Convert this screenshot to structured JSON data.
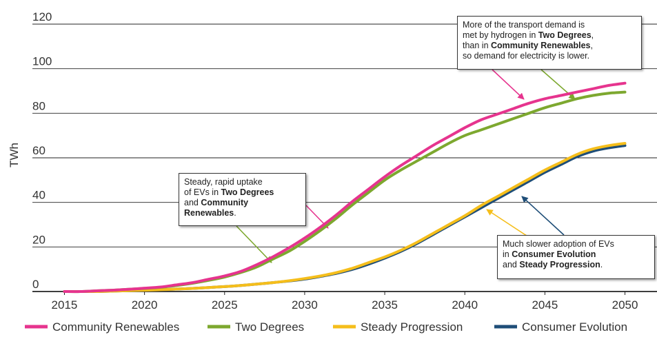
{
  "chart_data": {
    "type": "line",
    "title": "",
    "xlabel": "",
    "ylabel": "TWh",
    "xlim": [
      2013,
      2052
    ],
    "ylim": [
      0,
      120
    ],
    "x_ticks": [
      "2015",
      "2020",
      "2025",
      "2030",
      "2035",
      "2040",
      "2045",
      "2050"
    ],
    "y_ticks": [
      "0",
      "20",
      "40",
      "60",
      "80",
      "100",
      "120"
    ],
    "grid": "horizontal",
    "legend_position": "bottom",
    "x": [
      2015,
      2016,
      2017,
      2018,
      2019,
      2020,
      2021,
      2022,
      2023,
      2024,
      2025,
      2026,
      2027,
      2028,
      2029,
      2030,
      2031,
      2032,
      2033,
      2034,
      2035,
      2036,
      2037,
      2038,
      2039,
      2040,
      2041,
      2042,
      2043,
      2044,
      2045,
      2046,
      2047,
      2048,
      2049,
      2050
    ],
    "series": [
      {
        "name": "Community Renewables",
        "color": "#e6348e",
        "values": [
          0,
          0,
          0.3,
          0.6,
          1,
          1.5,
          2,
          3,
          4,
          5.5,
          7,
          9,
          12,
          15.5,
          19.5,
          24,
          29,
          34.5,
          40.5,
          46,
          51.5,
          56.5,
          61,
          65.5,
          69.5,
          73.5,
          77,
          79.5,
          82,
          84.5,
          86.5,
          88,
          89.5,
          91,
          92.5,
          93.5
        ]
      },
      {
        "name": "Two Degrees",
        "color": "#7da82f",
        "values": [
          0,
          0,
          0.3,
          0.6,
          1,
          1.4,
          1.9,
          2.7,
          3.7,
          5,
          6.5,
          8.5,
          11,
          14.5,
          18,
          22.5,
          27.5,
          33,
          39,
          44.5,
          50,
          54.5,
          58.5,
          62.5,
          66.5,
          70,
          72.5,
          75,
          77.5,
          80,
          82.5,
          84.5,
          86.5,
          88,
          89,
          89.5
        ]
      },
      {
        "name": "Steady Progression",
        "color": "#f5be1b",
        "values": [
          0,
          0,
          0,
          0.2,
          0.4,
          0.6,
          0.8,
          1.1,
          1.4,
          1.8,
          2.2,
          2.7,
          3.3,
          4,
          4.8,
          5.8,
          7,
          8.5,
          10.5,
          13,
          15.5,
          18.5,
          22,
          26,
          30,
          34,
          38.5,
          42.5,
          46.5,
          50.5,
          54.5,
          58,
          61.5,
          64,
          65.5,
          66.5
        ]
      },
      {
        "name": "Consumer Evolution",
        "color": "#1f4e78",
        "values": [
          0,
          0,
          0,
          0.2,
          0.4,
          0.6,
          0.8,
          1.1,
          1.4,
          1.8,
          2.2,
          2.7,
          3.3,
          4,
          4.7,
          5.6,
          6.8,
          8.2,
          10,
          12.3,
          15,
          18,
          21.5,
          25.5,
          29.5,
          33.5,
          37.5,
          41.5,
          45.5,
          49.5,
          53.5,
          57,
          60.5,
          63,
          64.5,
          65.5
        ]
      }
    ],
    "annotations": [
      {
        "name": "annotation-hydrogen",
        "lines": [
          [
            {
              "t": "More of the transport demand is",
              "b": false
            }
          ],
          [
            {
              "t": "met by hydrogen in ",
              "b": false
            },
            {
              "t": "Two Degrees",
              "b": true
            },
            {
              "t": ",",
              "b": false
            }
          ],
          [
            {
              "t": "than in ",
              "b": false
            },
            {
              "t": "Community Renewables",
              "b": true
            },
            {
              "t": ",",
              "b": false
            }
          ],
          [
            {
              "t": "so demand for electricity is lower.",
              "b": false
            }
          ]
        ]
      },
      {
        "name": "annotation-rapid-uptake",
        "lines": [
          [
            {
              "t": "Steady, rapid uptake",
              "b": false
            }
          ],
          [
            {
              "t": "of EVs in ",
              "b": false
            },
            {
              "t": "Two Degrees",
              "b": true
            }
          ],
          [
            {
              "t": "and ",
              "b": false
            },
            {
              "t": "Community",
              "b": true
            }
          ],
          [
            {
              "t": "Renewables",
              "b": true
            },
            {
              "t": ".",
              "b": false
            }
          ]
        ]
      },
      {
        "name": "annotation-slower-adoption",
        "lines": [
          [
            {
              "t": "Much slower adoption of EVs",
              "b": false
            }
          ],
          [
            {
              "t": "in ",
              "b": false
            },
            {
              "t": "Consumer Evolution",
              "b": true
            }
          ],
          [
            {
              "t": "and ",
              "b": false
            },
            {
              "t": "Steady Progression",
              "b": true
            },
            {
              "t": ".",
              "b": false
            }
          ]
        ]
      }
    ]
  }
}
